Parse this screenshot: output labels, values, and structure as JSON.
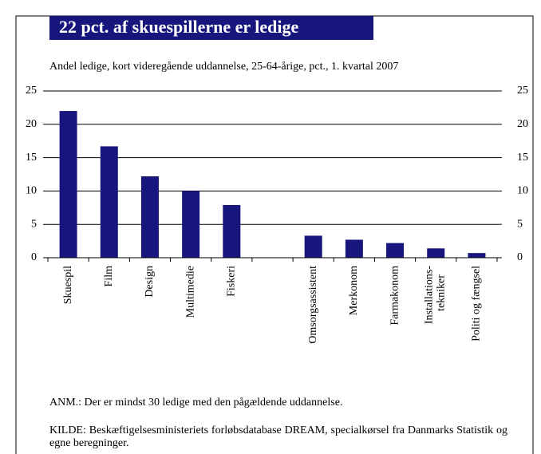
{
  "chart_data": {
    "type": "bar",
    "title": "22 pct. af skuespillerne er ledige",
    "subtitle": "Andel ledige, kort videregående uddannelse, 25-64-årige, pct., 1. kvartal 2007",
    "categories": [
      "Skuespil",
      "Film",
      "Design",
      "Multimedie",
      "Fiskeri",
      null,
      "Omsorgsassistent",
      "Merkonom",
      "Farmakonom",
      "Installations-\ntekniker",
      "Politi og fængsel"
    ],
    "values": [
      22,
      16.7,
      12.2,
      10,
      7.9,
      null,
      3.3,
      2.7,
      2.2,
      1.4,
      0.7
    ],
    "color": "#16167c",
    "ylim": [
      0,
      25
    ],
    "yticks": [
      0,
      5,
      10,
      15,
      20,
      25
    ],
    "y2lim": [
      0,
      25
    ],
    "y2ticks": [
      0,
      5,
      10,
      15,
      20,
      25
    ],
    "grid": true,
    "notes": [
      "ANM.: Der er mindst 30 ledige med den pågældende uddannelse.",
      "KILDE: Beskæftigelsesministeriets forløbsdatabase DREAM, specialkørsel fra Danmarks Statistik og egne beregninger."
    ]
  }
}
